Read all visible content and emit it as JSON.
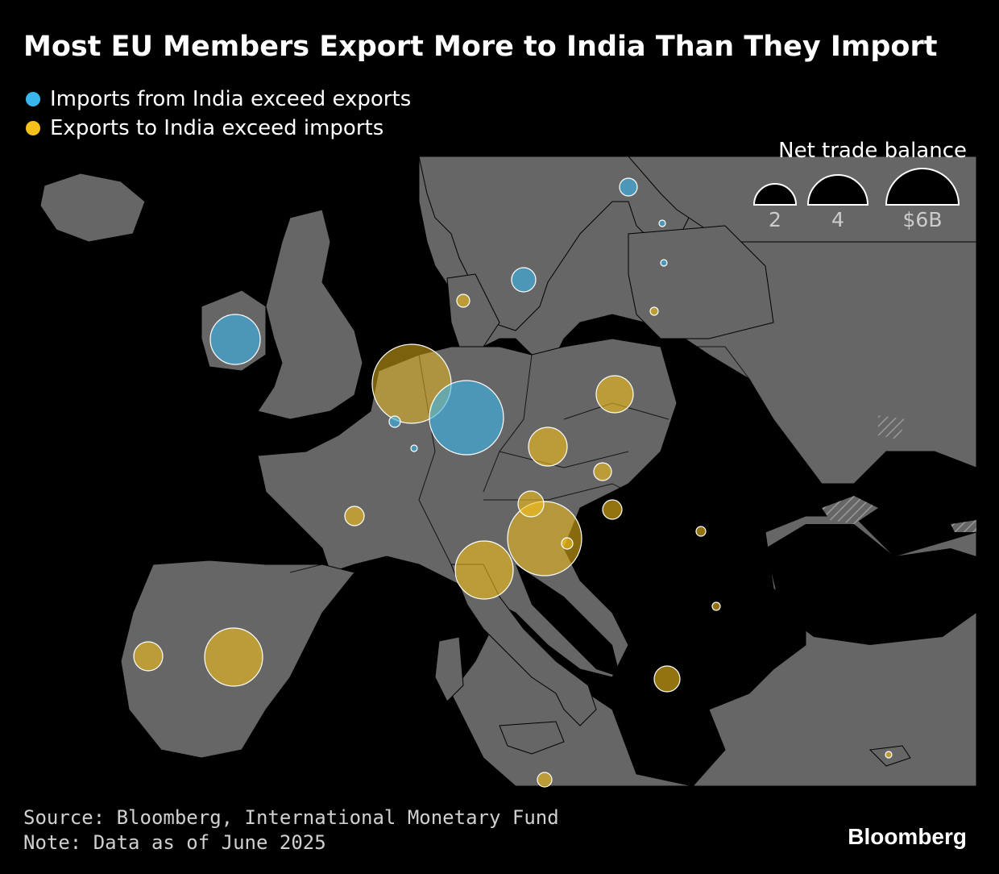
{
  "title": "Most EU Members Export More to India Than They Import",
  "legend": [
    {
      "label": "Imports from India exceed exports",
      "color": "#3ab6ef"
    },
    {
      "label": "Exports to India exceed imports",
      "color": "#f5c019"
    }
  ],
  "size_legend": {
    "title": "Net trade balance",
    "items": [
      {
        "label": "2",
        "value": 2
      },
      {
        "label": "4",
        "value": 4
      },
      {
        "label": "$6B",
        "value": 6
      }
    ]
  },
  "colors": {
    "imports": "#3ab6ef",
    "exports": "#f5c019",
    "land": "#666666",
    "sea": "#000000"
  },
  "footer": {
    "source": "Source: Bloomberg, International Monetary Fund",
    "note": "Note: Data as of June 2025"
  },
  "logo": "Bloomberg",
  "map_points": [
    {
      "country": "Netherlands",
      "type": "exports",
      "value": 5.5
    },
    {
      "country": "Germany",
      "type": "imports",
      "value": 4.8
    },
    {
      "country": "Ireland",
      "type": "imports",
      "value": 2.1
    },
    {
      "country": "Spain",
      "type": "exports",
      "value": 3.0
    },
    {
      "country": "Italy",
      "type": "exports",
      "value": 3.0
    },
    {
      "country": "Slovenia",
      "type": "exports",
      "value": 4.7
    },
    {
      "country": "Austria",
      "type": "exports",
      "value": 0.6
    },
    {
      "country": "Poland",
      "type": "exports",
      "value": 1.2
    },
    {
      "country": "Czechia",
      "type": "exports",
      "value": 1.3
    },
    {
      "country": "Sweden",
      "type": "imports",
      "value": 0.5
    },
    {
      "country": "Finland",
      "type": "imports",
      "value": 0.3
    },
    {
      "country": "Portugal",
      "type": "exports",
      "value": 0.7
    },
    {
      "country": "France",
      "type": "exports",
      "value": 0.3
    },
    {
      "country": "Greece",
      "type": "exports",
      "value": 0.5
    },
    {
      "country": "Slovakia",
      "type": "exports",
      "value": 0.3
    },
    {
      "country": "Hungary",
      "type": "exports",
      "value": 0.3
    },
    {
      "country": "Denmark",
      "type": "exports",
      "value": 0.15
    },
    {
      "country": "Belgium",
      "type": "imports",
      "value": 0.15
    },
    {
      "country": "Luxembourg",
      "type": "imports",
      "value": 0.05
    },
    {
      "country": "Estonia",
      "type": "imports",
      "value": 0.03
    },
    {
      "country": "Latvia",
      "type": "imports",
      "value": 0.03
    },
    {
      "country": "Lithuania",
      "type": "exports",
      "value": 0.05
    },
    {
      "country": "Romania",
      "type": "exports",
      "value": 0.07
    },
    {
      "country": "Bulgaria",
      "type": "exports",
      "value": 0.05
    },
    {
      "country": "Croatia",
      "type": "exports",
      "value": 0.1
    },
    {
      "country": "Cyprus",
      "type": "exports",
      "value": 0.03
    },
    {
      "country": "Malta",
      "type": "exports",
      "value": 0.2
    }
  ]
}
